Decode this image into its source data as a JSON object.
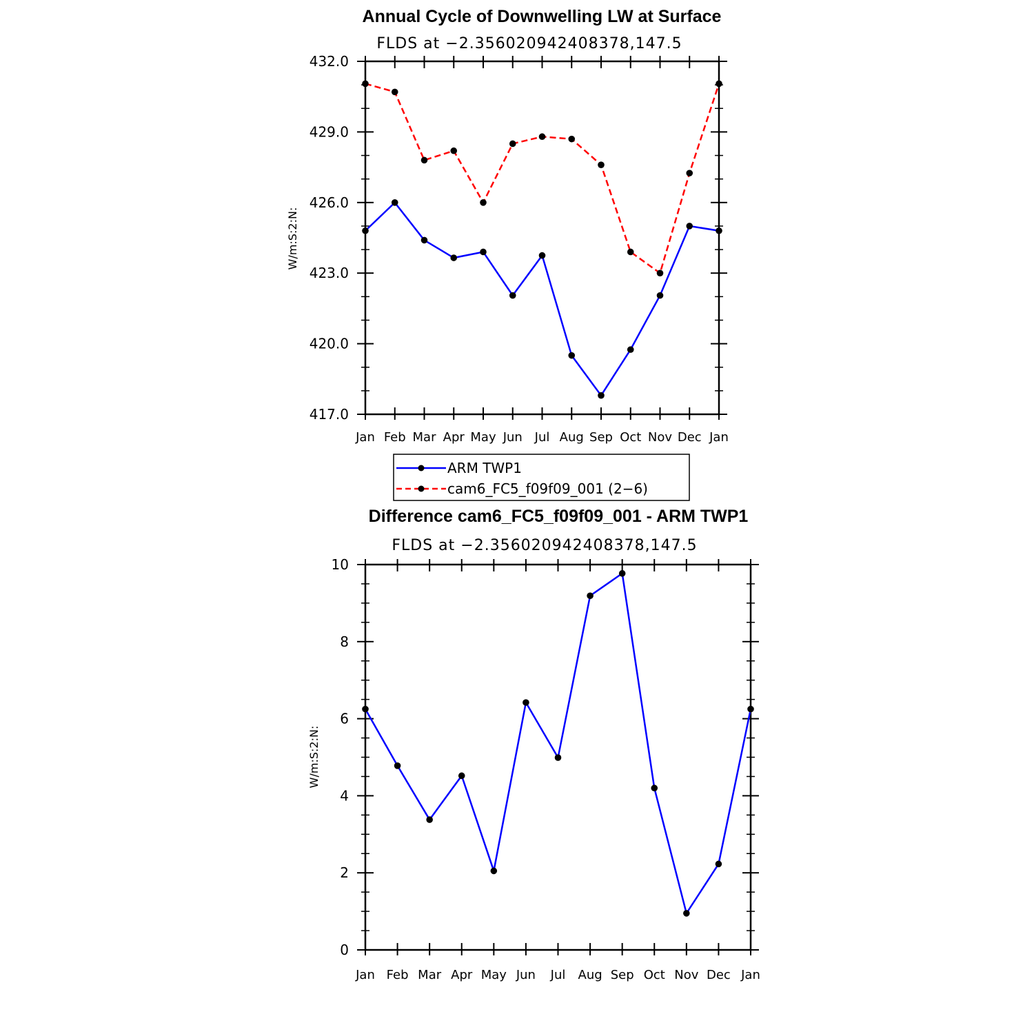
{
  "chart_data": [
    {
      "type": "line",
      "title": "Annual Cycle of Downwelling LW at Surface",
      "subtitle": "FLDS at −2.356020942408378,147.5",
      "ylabel": "W/m:S:2:N:",
      "ylim": [
        417.0,
        432.0
      ],
      "yticks": [
        "417.0",
        "420.0",
        "423.0",
        "426.0",
        "429.0",
        "432.0"
      ],
      "categories": [
        "Jan",
        "Feb",
        "Mar",
        "Apr",
        "May",
        "Jun",
        "Jul",
        "Aug",
        "Sep",
        "Oct",
        "Nov",
        "Dec",
        "Jan"
      ],
      "series": [
        {
          "name": "ARM TWP1",
          "color": "#0000ff",
          "dash": "solid",
          "values": [
            424.8,
            426.0,
            424.4,
            423.65,
            423.9,
            422.05,
            423.75,
            419.5,
            417.8,
            419.75,
            422.05,
            425.0,
            424.8
          ]
        },
        {
          "name": "cam6_FC5_f09f09_001 (2−6)",
          "color": "#ff0000",
          "dash": "dashed",
          "values": [
            431.05,
            430.7,
            427.8,
            428.2,
            426.0,
            428.5,
            428.8,
            428.7,
            427.6,
            423.9,
            423.0,
            427.25,
            431.05
          ]
        }
      ],
      "legend": "below"
    },
    {
      "type": "line",
      "title": "Difference cam6_FC5_f09f09_001 - ARM TWP1",
      "subtitle": "FLDS at −2.356020942408378,147.5",
      "ylabel": "W/m:S:2:N:",
      "ylim": [
        0,
        10
      ],
      "yticks": [
        "0",
        "2",
        "4",
        "6",
        "8",
        "10"
      ],
      "categories": [
        "Jan",
        "Feb",
        "Mar",
        "Apr",
        "May",
        "Jun",
        "Jul",
        "Aug",
        "Sep",
        "Oct",
        "Nov",
        "Dec",
        "Jan"
      ],
      "series": [
        {
          "color": "#0000ff",
          "dash": "solid",
          "values": [
            6.25,
            4.78,
            3.38,
            4.52,
            2.05,
            6.42,
            4.99,
            9.19,
            9.77,
            4.2,
            0.95,
            2.23,
            6.25
          ]
        }
      ]
    }
  ]
}
